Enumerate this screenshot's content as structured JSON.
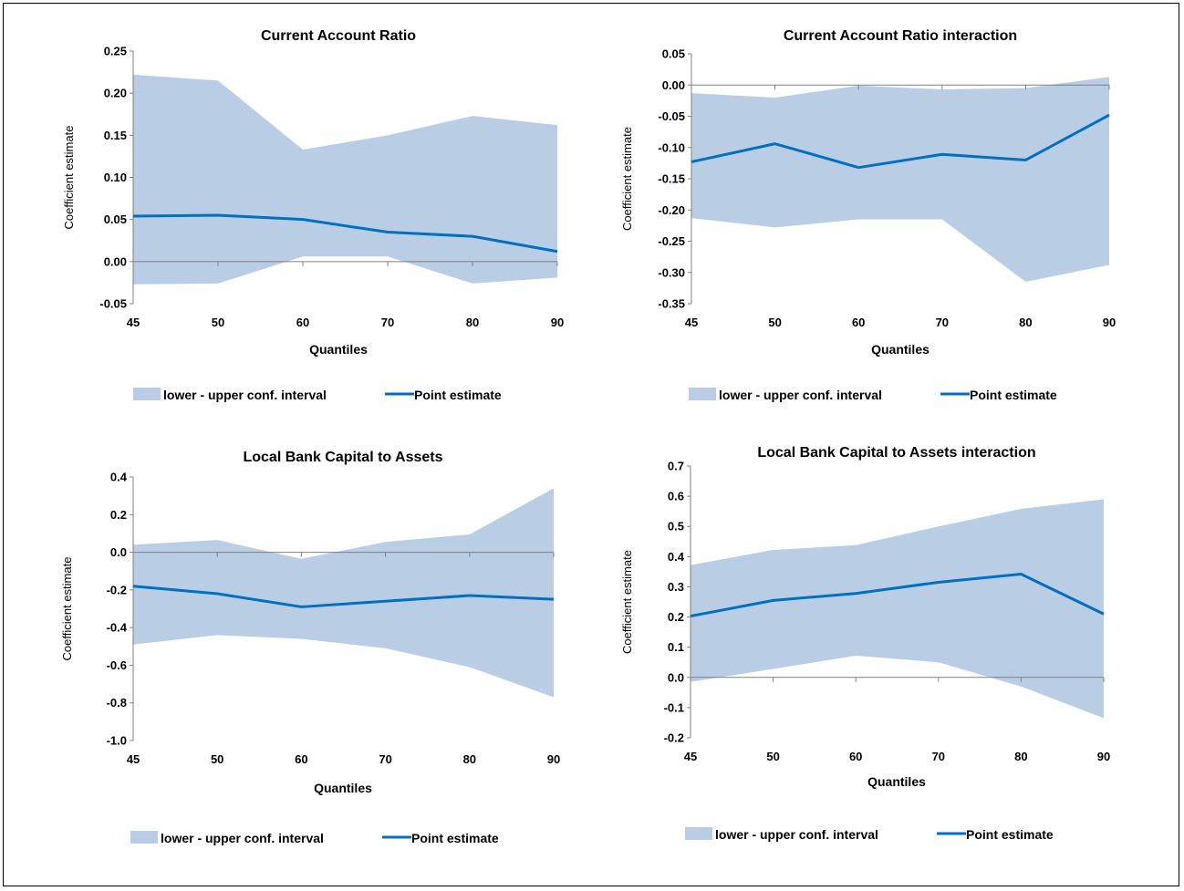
{
  "colors": {
    "band": "#b9cde5",
    "line": "#0070c0",
    "axis": "#808080"
  },
  "chart_data": [
    {
      "type": "line",
      "title": "Current Account Ratio",
      "xlabel": "Quantiles",
      "ylabel": "Coefficient estimate",
      "categories": [
        "45",
        "50",
        "60",
        "70",
        "80",
        "90"
      ],
      "ylim": [
        -0.05,
        0.25
      ],
      "yticks": [
        "0.25",
        "0.20",
        "0.15",
        "0.10",
        "0.05",
        "0.00",
        "-0.05"
      ],
      "yticks_values": [
        0.25,
        0.2,
        0.15,
        0.1,
        0.05,
        0.0,
        -0.05
      ],
      "series": [
        {
          "name": "lower - upper conf. interval",
          "kind": "band",
          "lower": [
            -0.027,
            -0.026,
            0.006,
            0.006,
            -0.026,
            -0.019
          ],
          "upper": [
            0.222,
            0.215,
            0.133,
            0.15,
            0.173,
            0.162
          ]
        },
        {
          "name": "Point estimate",
          "kind": "line",
          "values": [
            0.054,
            0.055,
            0.05,
            0.035,
            0.03,
            0.012
          ]
        }
      ],
      "legend": "bottom"
    },
    {
      "type": "line",
      "title": "Current Account Ratio interaction",
      "xlabel": "Quantiles",
      "ylabel": "Coefficient estimate",
      "categories": [
        "45",
        "50",
        "60",
        "70",
        "80",
        "90"
      ],
      "ylim": [
        -0.35,
        0.05
      ],
      "yticks": [
        "0.05",
        "0.00",
        "-0.05",
        "-0.10",
        "-0.15",
        "-0.20",
        "-0.25",
        "-0.30",
        "-0.35"
      ],
      "yticks_values": [
        0.05,
        0.0,
        -0.05,
        -0.1,
        -0.15,
        -0.2,
        -0.25,
        -0.3,
        -0.35
      ],
      "series": [
        {
          "name": "lower - upper conf. interval",
          "kind": "band",
          "lower": [
            -0.213,
            -0.228,
            -0.215,
            -0.215,
            -0.315,
            -0.288
          ],
          "upper": [
            -0.013,
            -0.02,
            -0.001,
            -0.007,
            -0.005,
            0.013
          ]
        },
        {
          "name": "Point estimate",
          "kind": "line",
          "values": [
            -0.123,
            -0.094,
            -0.132,
            -0.111,
            -0.12,
            -0.048
          ]
        }
      ],
      "legend": "bottom"
    },
    {
      "type": "line",
      "title": "Local Bank Capital to Assets",
      "xlabel": "Quantiles",
      "ylabel": "Coefficient estimate",
      "categories": [
        "45",
        "50",
        "60",
        "70",
        "80",
        "90"
      ],
      "ylim": [
        -1.0,
        0.4
      ],
      "yticks": [
        "0.4",
        "0.2",
        "0.0",
        "-0.2",
        "-0.4",
        "-0.6",
        "-0.8",
        "-1.0"
      ],
      "yticks_values": [
        0.4,
        0.2,
        0.0,
        -0.2,
        -0.4,
        -0.6,
        -0.8,
        -1.0
      ],
      "series": [
        {
          "name": "lower - upper conf. interval",
          "kind": "band",
          "lower": [
            -0.49,
            -0.44,
            -0.46,
            -0.51,
            -0.61,
            -0.77
          ],
          "upper": [
            0.04,
            0.065,
            -0.035,
            0.055,
            0.095,
            0.34
          ]
        },
        {
          "name": "Point estimate",
          "kind": "line",
          "values": [
            -0.18,
            -0.22,
            -0.29,
            -0.26,
            -0.23,
            -0.25
          ]
        }
      ],
      "legend": "bottom"
    },
    {
      "type": "line",
      "title": "Local Bank Capital  to Assets interaction",
      "xlabel": "Quantiles",
      "ylabel": "Coefficient estimate",
      "categories": [
        "45",
        "50",
        "60",
        "70",
        "80",
        "90"
      ],
      "ylim": [
        -0.2,
        0.7
      ],
      "yticks": [
        "0.7",
        "0.6",
        "0.5",
        "0.4",
        "0.3",
        "0.2",
        "0.1",
        "0.0",
        "-0.1",
        "-0.2"
      ],
      "yticks_values": [
        0.7,
        0.6,
        0.5,
        0.4,
        0.3,
        0.2,
        0.1,
        0.0,
        -0.1,
        -0.2
      ],
      "series": [
        {
          "name": "lower - upper conf. interval",
          "kind": "band",
          "lower": [
            -0.015,
            0.028,
            0.072,
            0.05,
            -0.03,
            -0.135
          ],
          "upper": [
            0.372,
            0.422,
            0.438,
            0.5,
            0.558,
            0.59
          ]
        },
        {
          "name": "Point estimate",
          "kind": "line",
          "values": [
            0.203,
            0.255,
            0.278,
            0.315,
            0.342,
            0.21
          ]
        }
      ],
      "legend": "bottom"
    }
  ]
}
